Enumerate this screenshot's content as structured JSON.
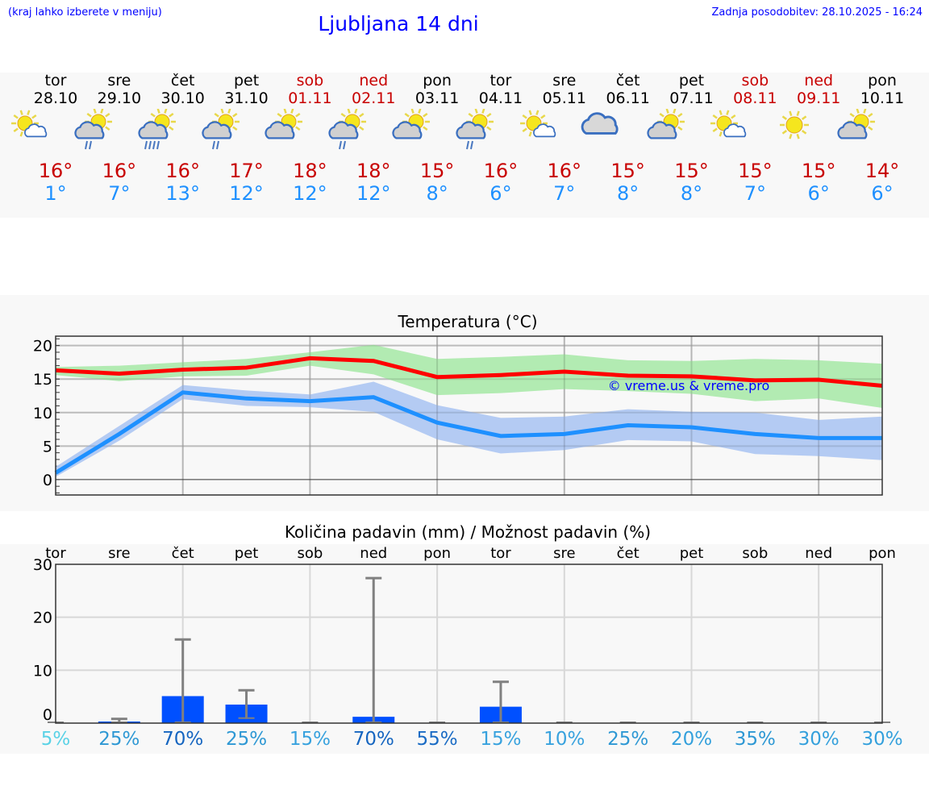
{
  "header": {
    "hint": "(kraj lahko izberete v meniju)",
    "title": "Ljubljana 14 dni",
    "updated": "Zadnja posodobitev: 28.10.2025 - 16:24"
  },
  "colors": {
    "max": "#c80000",
    "min": "#1e90ff",
    "weekend": "#c80000",
    "bar": "#0050ff",
    "maxBand": "#aeeaae",
    "minBand": "#b0c8f2",
    "maxLine": "#ff0000",
    "minLine": "#1e90ff",
    "watermark": "#0000ff"
  },
  "days": [
    {
      "name": "tor",
      "date": "28.10",
      "icon": "sun-small-cloud",
      "max": "16°",
      "min": "1°",
      "weekend": false
    },
    {
      "name": "sre",
      "date": "29.10",
      "icon": "sun-cloud-light-rain",
      "max": "16°",
      "min": "7°",
      "weekend": false
    },
    {
      "name": "čet",
      "date": "30.10",
      "icon": "sun-cloud-rain",
      "max": "16°",
      "min": "13°",
      "weekend": false
    },
    {
      "name": "pet",
      "date": "31.10",
      "icon": "sun-cloud-light-rain",
      "max": "17°",
      "min": "12°",
      "weekend": false
    },
    {
      "name": "sob",
      "date": "01.11",
      "icon": "sun-cloud",
      "max": "18°",
      "min": "12°",
      "weekend": true
    },
    {
      "name": "ned",
      "date": "02.11",
      "icon": "sun-cloud-light-rain",
      "max": "18°",
      "min": "12°",
      "weekend": true
    },
    {
      "name": "pon",
      "date": "03.11",
      "icon": "sun-cloud",
      "max": "15°",
      "min": "8°",
      "weekend": false
    },
    {
      "name": "tor",
      "date": "04.11",
      "icon": "sun-cloud-light-rain",
      "max": "16°",
      "min": "6°",
      "weekend": false
    },
    {
      "name": "sre",
      "date": "05.11",
      "icon": "sun-small-cloud",
      "max": "16°",
      "min": "7°",
      "weekend": false
    },
    {
      "name": "čet",
      "date": "06.11",
      "icon": "cloudy",
      "max": "15°",
      "min": "8°",
      "weekend": false
    },
    {
      "name": "pet",
      "date": "07.11",
      "icon": "sun-cloud",
      "max": "15°",
      "min": "8°",
      "weekend": false
    },
    {
      "name": "sob",
      "date": "08.11",
      "icon": "sun-small-cloud",
      "max": "15°",
      "min": "7°",
      "weekend": true
    },
    {
      "name": "ned",
      "date": "09.11",
      "icon": "sun",
      "max": "15°",
      "min": "6°",
      "weekend": true
    },
    {
      "name": "pon",
      "date": "10.11",
      "icon": "sun-cloud",
      "max": "14°",
      "min": "6°",
      "weekend": false
    }
  ],
  "chart_data": [
    {
      "type": "line",
      "title": "Temperatura (°C)",
      "ylim": [
        -2.3,
        21.4
      ],
      "yticks": [
        0,
        5,
        10,
        15,
        20
      ],
      "grid": true,
      "watermark": "© vreme.us & vreme.pro",
      "categories": [
        "28.10",
        "29.10",
        "30.10",
        "31.10",
        "01.11",
        "02.11",
        "03.11",
        "04.11",
        "05.11",
        "06.11",
        "07.11",
        "08.11",
        "09.11",
        "10.11"
      ],
      "series": [
        {
          "values": [
            16.3,
            15.8,
            16.4,
            16.7,
            18.1,
            17.7,
            15.3,
            15.6,
            16.1,
            15.5,
            15.4,
            14.8,
            14.9,
            14.0
          ],
          "band_upper": [
            16.8,
            17.0,
            17.5,
            18.0,
            19.0,
            20.1,
            18.0,
            18.3,
            18.7,
            17.8,
            17.7,
            18.0,
            17.8,
            17.3
          ],
          "band_lower": [
            15.6,
            14.7,
            15.4,
            15.5,
            17.0,
            15.7,
            12.6,
            12.9,
            13.5,
            13.2,
            12.8,
            11.7,
            12.1,
            10.7
          ]
        },
        {
          "values": [
            1.0,
            6.8,
            13.0,
            12.1,
            11.7,
            12.3,
            8.5,
            6.5,
            6.8,
            8.1,
            7.8,
            6.8,
            6.2,
            6.2
          ],
          "band_upper": [
            1.9,
            8.0,
            14.1,
            13.3,
            12.7,
            14.6,
            11.1,
            9.2,
            9.4,
            10.5,
            10.1,
            10.0,
            8.9,
            9.4
          ],
          "band_lower": [
            0.4,
            5.8,
            12.0,
            11.0,
            10.8,
            10.1,
            6.0,
            3.9,
            4.4,
            5.9,
            5.7,
            3.8,
            3.5,
            2.9
          ]
        }
      ]
    },
    {
      "type": "bar",
      "title": "Količina padavin (mm) / Možnost padavin (%)",
      "ylim": [
        0,
        30
      ],
      "yticks": [
        0,
        10,
        20,
        30
      ],
      "grid": true,
      "categories": [
        "tor",
        "sre",
        "čet",
        "pet",
        "sob",
        "ned",
        "pon",
        "tor",
        "sre",
        "čet",
        "pet",
        "sob",
        "ned",
        "pon"
      ],
      "values": [
        0,
        0.3,
        5.1,
        3.5,
        0,
        1.2,
        0,
        3.1,
        0,
        0,
        0,
        0,
        0,
        0
      ],
      "error_low": [
        0,
        0,
        0,
        0.8,
        0,
        0,
        0,
        0,
        0,
        0,
        0,
        0,
        0,
        0
      ],
      "error_high": [
        0,
        0.8,
        15.8,
        6.2,
        0,
        27.4,
        0,
        7.8,
        0,
        0,
        0,
        0,
        0,
        0
      ],
      "probability": [
        "5%",
        "25%",
        "70%",
        "25%",
        "15%",
        "70%",
        "55%",
        "15%",
        "10%",
        "25%",
        "20%",
        "35%",
        "30%",
        "30%"
      ],
      "probability_colors": [
        "#5ad2e6",
        "#2e98d4",
        "#1565c0",
        "#2e98d4",
        "#38a2de",
        "#1565c0",
        "#1a6bc4",
        "#38a2de",
        "#38a2de",
        "#2e98d4",
        "#34a0dc",
        "#2e98d4",
        "#34a0dc",
        "#34a0dc"
      ]
    }
  ]
}
